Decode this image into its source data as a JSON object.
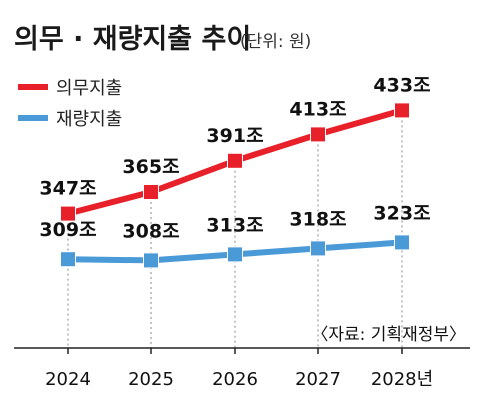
{
  "chart_data": {
    "type": "line",
    "title": "의무 · 재량지출 추이",
    "unit": "(단위: 원)",
    "source": "〈자료: 기획재정부〉",
    "categories": [
      "2024",
      "2025",
      "2026",
      "2027",
      "2028년"
    ],
    "ylim": [
      250,
      450
    ],
    "grid": "vertical dotted",
    "legend_position": "top-left",
    "series": [
      {
        "name": "의무지출",
        "color": "#e8202a",
        "values": [
          347,
          365,
          391,
          413,
          433
        ],
        "labels": [
          "347조",
          "365조",
          "391조",
          "413조",
          "433조"
        ]
      },
      {
        "name": "재량지출",
        "color": "#4a9ad8",
        "values": [
          309,
          308,
          313,
          318,
          323
        ],
        "labels": [
          "309조",
          "308조",
          "313조",
          "318조",
          "323조"
        ]
      }
    ]
  }
}
